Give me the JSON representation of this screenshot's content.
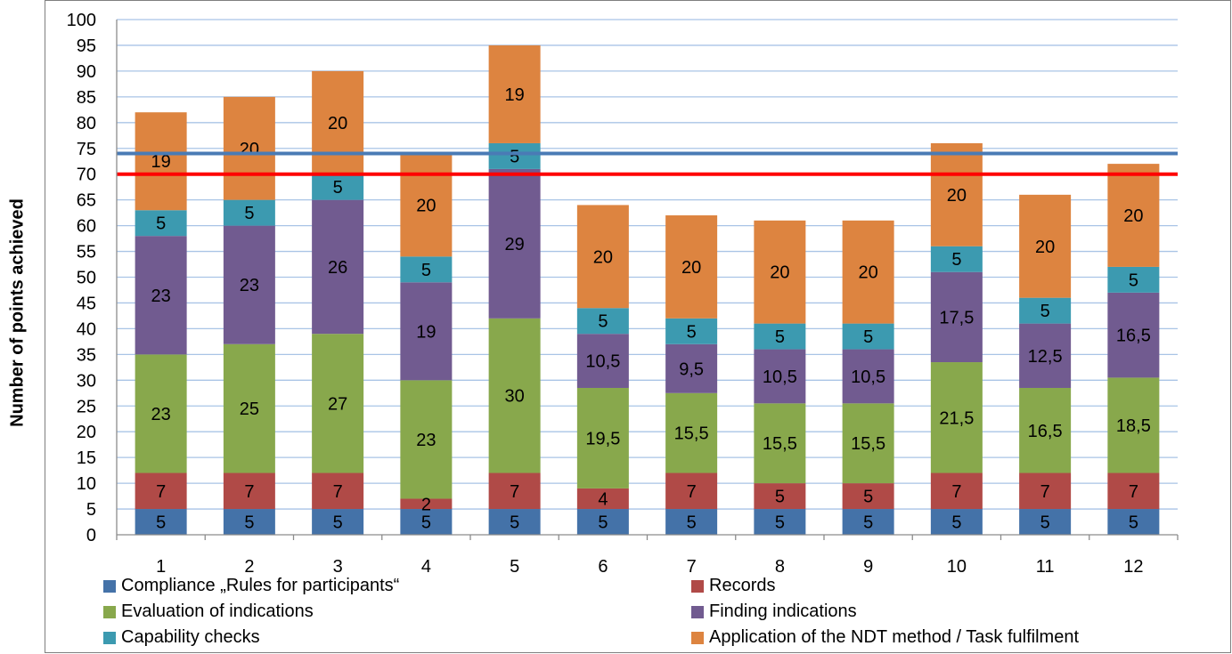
{
  "chart_data": {
    "type": "bar",
    "stacked": true,
    "ylabel": "Number of points achieved",
    "xlabel": "",
    "categories": [
      "1",
      "2",
      "3",
      "4",
      "5",
      "6",
      "7",
      "8",
      "9",
      "10",
      "11",
      "12"
    ],
    "ylim": [
      0,
      100
    ],
    "yticks": [
      0,
      5,
      10,
      15,
      20,
      25,
      30,
      35,
      40,
      45,
      50,
      55,
      60,
      65,
      70,
      75,
      80,
      85,
      90,
      95,
      100
    ],
    "grid": true,
    "legend_position": "bottom",
    "series": [
      {
        "name": "Compliance „Rules for participants“",
        "color": "#4472a8",
        "values": [
          5,
          5,
          5,
          5,
          5,
          5,
          5,
          5,
          5,
          5,
          5,
          5
        ],
        "labels": [
          "5",
          "5",
          "5",
          "5",
          "5",
          "5",
          "5",
          "5",
          "5",
          "5",
          "5",
          "5"
        ]
      },
      {
        "name": "Records",
        "color": "#b04a47",
        "values": [
          7,
          7,
          7,
          2,
          7,
          4,
          7,
          5,
          5,
          7,
          7,
          7
        ],
        "labels": [
          "7",
          "7",
          "7",
          "2",
          "7",
          "4",
          "7",
          "5",
          "5",
          "7",
          "7",
          "7"
        ]
      },
      {
        "name": "Evaluation of indications",
        "color": "#88a84c",
        "values": [
          23,
          25,
          27,
          23,
          30,
          19.5,
          15.5,
          15.5,
          15.5,
          21.5,
          16.5,
          18.5
        ],
        "labels": [
          "23",
          "25",
          "27",
          "23",
          "30",
          "19,5",
          "15,5",
          "15,5",
          "15,5",
          "21,5",
          "16,5",
          "18,5"
        ]
      },
      {
        "name": "Finding indications",
        "color": "#715b90",
        "values": [
          23,
          23,
          26,
          19,
          29,
          10.5,
          9.5,
          10.5,
          10.5,
          17.5,
          12.5,
          16.5
        ],
        "labels": [
          "23",
          "23",
          "26",
          "19",
          "29",
          "10,5",
          "9,5",
          "10,5",
          "10,5",
          "17,5",
          "12,5",
          "16,5"
        ]
      },
      {
        "name": "Capability checks",
        "color": "#3c9ab0",
        "values": [
          5,
          5,
          5,
          5,
          5,
          5,
          5,
          5,
          5,
          5,
          5,
          5
        ],
        "labels": [
          "5",
          "5",
          "5",
          "5",
          "5",
          "5",
          "5",
          "5",
          "5",
          "5",
          "5",
          "5"
        ]
      },
      {
        "name": "Application of the NDT method / Task fulfilment",
        "color": "#dd8440",
        "values": [
          19,
          20,
          20,
          20,
          19,
          20,
          20,
          20,
          20,
          20,
          20,
          20
        ],
        "labels": [
          "19",
          "20",
          "20",
          "20",
          "19",
          "20",
          "20",
          "20",
          "20",
          "20",
          "20",
          "20"
        ]
      }
    ],
    "reference_lines": [
      {
        "value": 74,
        "color": "#4a7bb5"
      },
      {
        "value": 70,
        "color": "#ff0000"
      }
    ]
  }
}
